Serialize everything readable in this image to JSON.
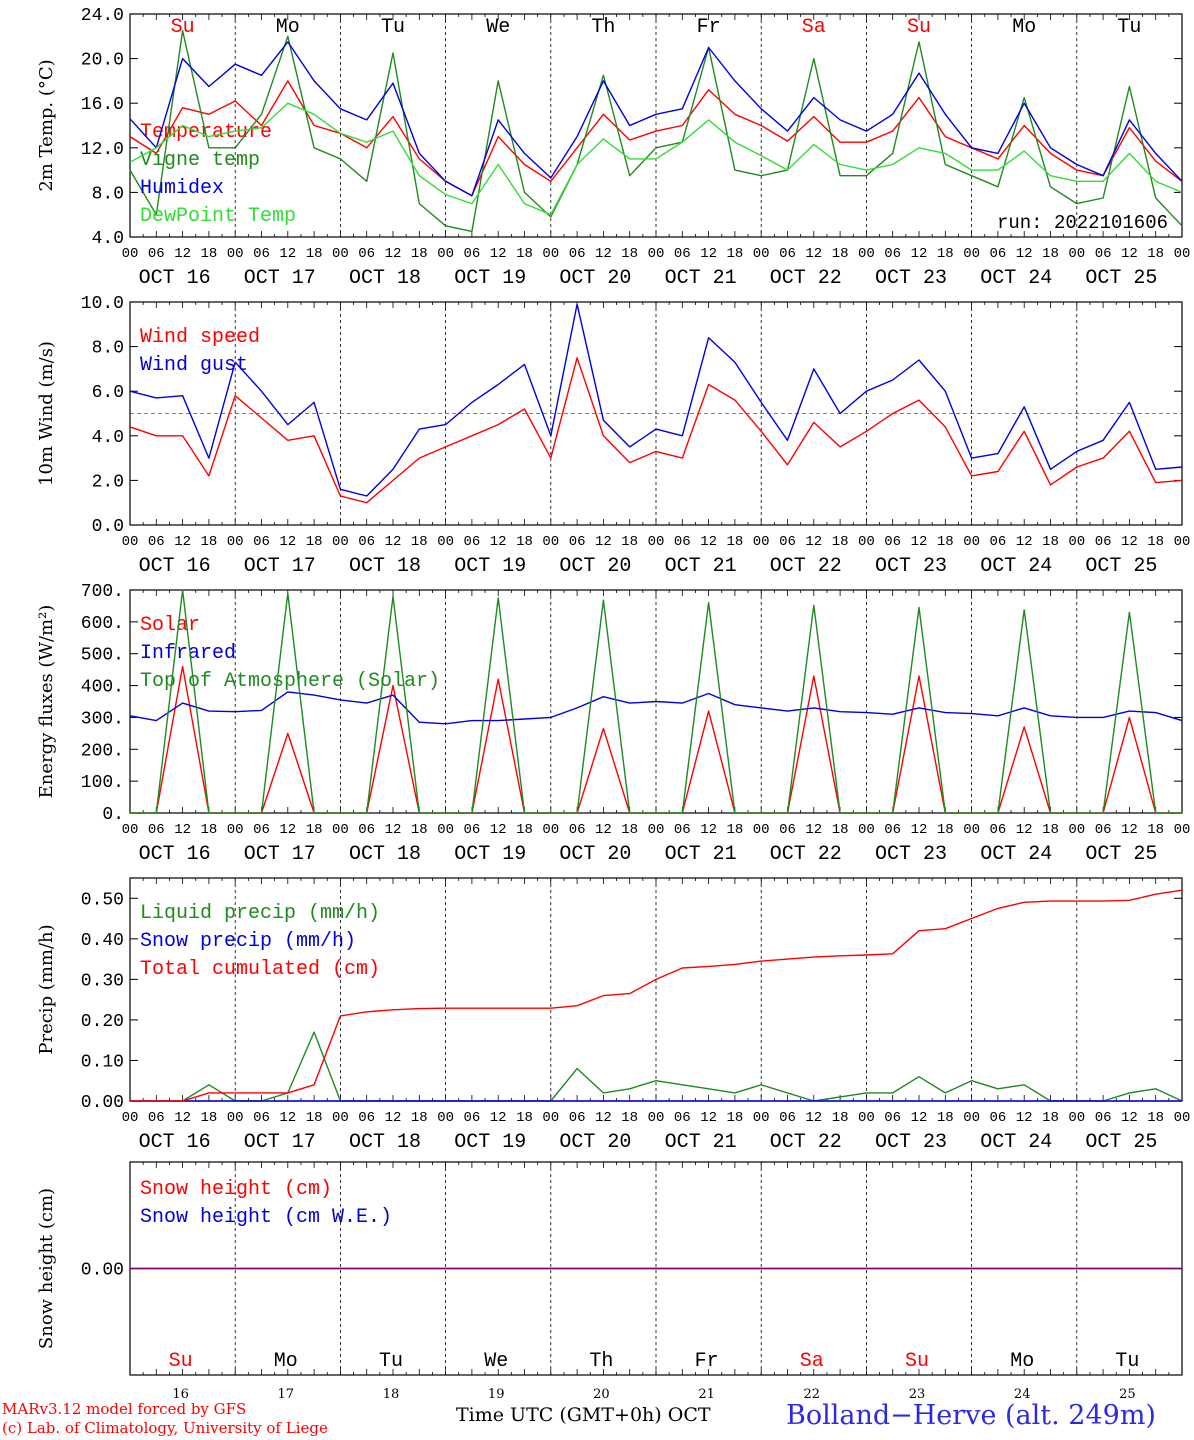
{
  "colors": {
    "red": "#ff0000",
    "green": "#1f8a1f",
    "blue": "#0000e0",
    "lightgreen": "#33dd33",
    "purple": "#800080",
    "grid": "#000000",
    "weekend": "#ff0000"
  },
  "days": [
    {
      "weekday": "Su",
      "date_label": "OCT 16",
      "day_num": "16",
      "weekend": true
    },
    {
      "weekday": "Mo",
      "date_label": "OCT 17",
      "day_num": "17",
      "weekend": false
    },
    {
      "weekday": "Tu",
      "date_label": "OCT 18",
      "day_num": "18",
      "weekend": false
    },
    {
      "weekday": "We",
      "date_label": "OCT 19",
      "day_num": "19",
      "weekend": false
    },
    {
      "weekday": "Th",
      "date_label": "OCT 20",
      "day_num": "20",
      "weekend": false
    },
    {
      "weekday": "Fr",
      "date_label": "OCT 21",
      "day_num": "21",
      "weekend": false
    },
    {
      "weekday": "Sa",
      "date_label": "OCT 22",
      "day_num": "22",
      "weekend": true
    },
    {
      "weekday": "Su",
      "date_label": "OCT 23",
      "day_num": "23",
      "weekend": true
    },
    {
      "weekday": "Mo",
      "date_label": "OCT 24",
      "day_num": "24",
      "weekend": false
    },
    {
      "weekday": "Tu",
      "date_label": "OCT 25",
      "day_num": "25",
      "weekend": false
    }
  ],
  "hour_ticks": [
    "00",
    "06",
    "12",
    "18"
  ],
  "footer": {
    "credit_line1": "MARv3.12 model forced by GFS",
    "credit_line2": "(c) Lab. of Climatology, University of Liege",
    "axis_label": "Time UTC (GMT+0h)",
    "month": "OCT",
    "station": "Bolland−Herve (alt. 249m)"
  },
  "chart_data": [
    {
      "type": "line",
      "ylabel": "2m Temp. (°C)",
      "ylim": [
        4,
        24
      ],
      "yticks": [
        "4.0",
        "8.0",
        "12.0",
        "16.0",
        "20.0",
        "24.0"
      ],
      "ytick_values": [
        4,
        8,
        12,
        16,
        20,
        24
      ],
      "annotation": "run: 2022101606",
      "x": [
        0,
        6,
        12,
        18,
        24,
        30,
        36,
        42,
        48,
        54,
        60,
        66,
        72,
        78,
        84,
        90,
        96,
        102,
        108,
        114,
        120,
        126,
        132,
        138,
        144,
        150,
        156,
        162,
        168,
        174,
        180,
        186,
        192,
        198,
        204,
        210,
        216,
        222,
        228,
        234,
        240
      ],
      "series": [
        {
          "name": "Temperature",
          "color": "red",
          "values": [
            13,
            11.5,
            15.6,
            15,
            16.2,
            14,
            18,
            14,
            13.3,
            12,
            14.8,
            11,
            9,
            7.7,
            13,
            10.5,
            9,
            12,
            15,
            12.7,
            13.5,
            14,
            17.2,
            15,
            14,
            12.6,
            14.8,
            12.5,
            12.5,
            13.5,
            16.5,
            13,
            12,
            11,
            14,
            11.5,
            10,
            9.5,
            13.8,
            10.8,
            9
          ]
        },
        {
          "name": "Vigne temp",
          "color": "green",
          "values": [
            10,
            6,
            22.5,
            12,
            12,
            15,
            22,
            12,
            11,
            9,
            20.5,
            7,
            5,
            4.5,
            18,
            8,
            5.8,
            10.5,
            18.5,
            9.5,
            12,
            12.5,
            21,
            10,
            9.5,
            10,
            20,
            9.5,
            9.5,
            11.5,
            21.5,
            10.5,
            9.5,
            8.5,
            16.5,
            8.5,
            7,
            7.5,
            17.5,
            7.5,
            5
          ]
        },
        {
          "name": "Humidex",
          "color": "blue",
          "values": [
            14.6,
            12,
            20,
            17.5,
            19.5,
            18.5,
            21.5,
            18,
            15.5,
            14.5,
            17.8,
            11.5,
            9,
            7.7,
            14.5,
            11.5,
            9.3,
            13,
            18,
            14,
            15,
            15.5,
            21,
            18,
            15.5,
            13.5,
            16.5,
            14.5,
            13.5,
            15,
            18.7,
            15,
            12,
            11.5,
            16,
            12,
            10.5,
            9.5,
            14.5,
            11.5,
            9
          ]
        },
        {
          "name": "DewPoint Temp",
          "color": "lightgreen",
          "values": [
            10.7,
            12,
            14,
            13,
            13.5,
            13.8,
            16,
            15,
            13.3,
            12.5,
            13.5,
            9.5,
            7.8,
            7,
            10.5,
            7,
            6,
            10.5,
            12.8,
            11,
            11,
            12.5,
            14.5,
            12.5,
            11.3,
            10,
            12.3,
            10.5,
            10,
            10.5,
            12,
            11.5,
            10,
            10,
            11.7,
            9.5,
            9,
            9,
            11.5,
            9,
            8
          ]
        }
      ]
    },
    {
      "type": "line",
      "ylabel": "10m Wind (m/s)",
      "ylim": [
        0,
        10
      ],
      "yticks": [
        "0.0",
        "2.0",
        "4.0",
        "6.0",
        "8.0",
        "10.0"
      ],
      "ytick_values": [
        0,
        2,
        4,
        6,
        8,
        10
      ],
      "reference_line": 5,
      "x": [
        0,
        6,
        12,
        18,
        24,
        30,
        36,
        42,
        48,
        54,
        60,
        66,
        72,
        78,
        84,
        90,
        96,
        102,
        108,
        114,
        120,
        126,
        132,
        138,
        144,
        150,
        156,
        162,
        168,
        174,
        180,
        186,
        192,
        198,
        204,
        210,
        216,
        222,
        228,
        234,
        240
      ],
      "series": [
        {
          "name": "Wind speed",
          "color": "red",
          "values": [
            4.4,
            4,
            4,
            2.2,
            5.8,
            4.8,
            3.8,
            4,
            1.3,
            1,
            2,
            3,
            3.5,
            4,
            4.5,
            5.2,
            3,
            7.5,
            4,
            2.8,
            3.3,
            3,
            6.3,
            5.6,
            4.2,
            2.7,
            4.6,
            3.5,
            4.2,
            5,
            5.6,
            4.4,
            2.2,
            2.4,
            4.2,
            1.8,
            2.6,
            3,
            4.2,
            1.9,
            2
          ]
        },
        {
          "name": "Wind gust",
          "color": "blue",
          "values": [
            6,
            5.7,
            5.8,
            3,
            7.3,
            6,
            4.5,
            5.5,
            1.6,
            1.3,
            2.5,
            4.3,
            4.5,
            5.5,
            6.3,
            7.2,
            4,
            9.9,
            4.7,
            3.5,
            4.3,
            4,
            8.4,
            7.3,
            5.5,
            3.8,
            7,
            5,
            6,
            6.5,
            7.4,
            6,
            3,
            3.2,
            5.3,
            2.5,
            3.3,
            3.8,
            5.5,
            2.5,
            2.6
          ]
        }
      ]
    },
    {
      "type": "line",
      "ylabel": "Energy fluxes (W/m²)",
      "ylim": [
        0,
        700
      ],
      "yticks": [
        "0.",
        "100.",
        "200.",
        "300.",
        "400.",
        "500.",
        "600.",
        "700."
      ],
      "ytick_values": [
        0,
        100,
        200,
        300,
        400,
        500,
        600,
        700
      ],
      "x": [
        0,
        6,
        12,
        18,
        24,
        30,
        36,
        42,
        48,
        54,
        60,
        66,
        72,
        78,
        84,
        90,
        96,
        102,
        108,
        114,
        120,
        126,
        132,
        138,
        144,
        150,
        156,
        162,
        168,
        174,
        180,
        186,
        192,
        198,
        204,
        210,
        216,
        222,
        228,
        234,
        240
      ],
      "series": [
        {
          "name": "Solar",
          "color": "red",
          "values": [
            0,
            0,
            460,
            0,
            0,
            0,
            250,
            0,
            0,
            0,
            400,
            0,
            0,
            0,
            420,
            0,
            0,
            0,
            265,
            0,
            0,
            0,
            320,
            0,
            0,
            0,
            430,
            0,
            0,
            0,
            430,
            0,
            0,
            0,
            270,
            0,
            0,
            0,
            300,
            0,
            0
          ]
        },
        {
          "name": "Infrared",
          "color": "blue",
          "values": [
            305,
            290,
            345,
            320,
            318,
            322,
            380,
            370,
            355,
            345,
            370,
            285,
            280,
            290,
            290,
            295,
            300,
            330,
            365,
            345,
            350,
            345,
            375,
            340,
            330,
            320,
            330,
            318,
            315,
            310,
            330,
            315,
            312,
            305,
            330,
            305,
            300,
            300,
            320,
            315,
            290
          ]
        },
        {
          "name": "Top of Atmosphere (Solar)",
          "color": "green",
          "values": [
            0,
            0,
            700,
            0,
            0,
            0,
            690,
            0,
            0,
            0,
            680,
            0,
            0,
            0,
            675,
            0,
            0,
            0,
            668,
            0,
            0,
            0,
            660,
            0,
            0,
            0,
            652,
            0,
            0,
            0,
            645,
            0,
            0,
            0,
            638,
            0,
            0,
            0,
            630,
            0,
            0
          ]
        }
      ]
    },
    {
      "type": "line",
      "ylabel": "Precip (mm/h)",
      "ylim": [
        0,
        0.55
      ],
      "yticks": [
        "0.00",
        "0.10",
        "0.20",
        "0.30",
        "0.40",
        "0.50"
      ],
      "ytick_values": [
        0,
        0.1,
        0.2,
        0.3,
        0.4,
        0.5
      ],
      "x": [
        0,
        6,
        12,
        18,
        24,
        30,
        36,
        42,
        48,
        54,
        60,
        66,
        72,
        78,
        84,
        90,
        96,
        102,
        108,
        114,
        120,
        126,
        132,
        138,
        144,
        150,
        156,
        162,
        168,
        174,
        180,
        186,
        192,
        198,
        204,
        210,
        216,
        222,
        228,
        234,
        240
      ],
      "series": [
        {
          "name": "Liquid precip (mm/h)",
          "color": "green",
          "values": [
            0,
            0,
            0,
            0.04,
            0,
            0,
            0.02,
            0.17,
            0,
            0,
            0,
            0,
            0,
            0,
            0,
            0,
            0,
            0.08,
            0.02,
            0.03,
            0.05,
            0.04,
            0.03,
            0.02,
            0.04,
            0.02,
            0,
            0.01,
            0.02,
            0.02,
            0.06,
            0.02,
            0.05,
            0.03,
            0.04,
            0,
            0,
            0,
            0.02,
            0.03,
            0
          ]
        },
        {
          "name": "Snow precip (mm/h)",
          "color": "blue",
          "values": [
            0,
            0,
            0,
            0,
            0,
            0,
            0,
            0,
            0,
            0,
            0,
            0,
            0,
            0,
            0,
            0,
            0,
            0,
            0,
            0,
            0,
            0,
            0,
            0,
            0,
            0,
            0,
            0,
            0,
            0,
            0,
            0,
            0,
            0,
            0,
            0,
            0,
            0,
            0,
            0,
            0
          ]
        },
        {
          "name": "Total cumulated (cm)",
          "color": "red",
          "values": [
            0,
            0,
            0,
            0.02,
            0.02,
            0.02,
            0.02,
            0.04,
            0.21,
            0.22,
            0.225,
            0.228,
            0.229,
            0.229,
            0.229,
            0.229,
            0.229,
            0.235,
            0.26,
            0.265,
            0.3,
            0.328,
            0.332,
            0.337,
            0.345,
            0.35,
            0.355,
            0.358,
            0.36,
            0.363,
            0.42,
            0.425,
            0.45,
            0.475,
            0.49,
            0.493,
            0.493,
            0.493,
            0.495,
            0.51,
            0.52
          ]
        }
      ]
    },
    {
      "type": "line",
      "ylabel": "Snow height (cm)",
      "ylim": [
        -1,
        1
      ],
      "yticks": [
        "0.00"
      ],
      "ytick_values": [
        0
      ],
      "x": [
        0,
        240
      ],
      "series": [
        {
          "name": "Snow height (cm)",
          "color": "red",
          "values": [
            0,
            0
          ]
        },
        {
          "name": "Snow height (cm W.E.)",
          "color": "blue",
          "values": [
            0,
            0
          ]
        }
      ]
    }
  ]
}
